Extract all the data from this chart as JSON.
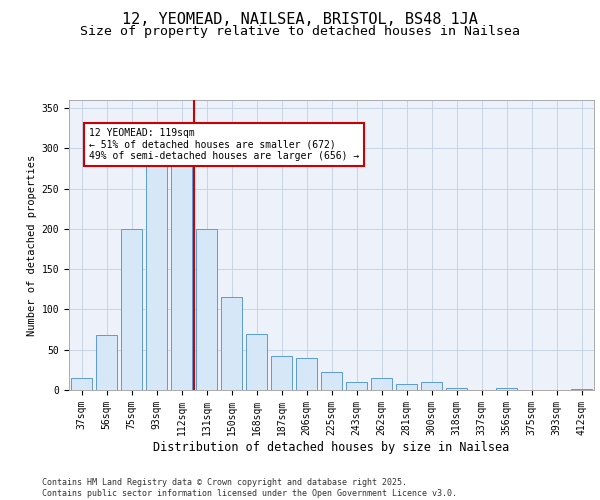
{
  "title1": "12, YEOMEAD, NAILSEA, BRISTOL, BS48 1JA",
  "title2": "Size of property relative to detached houses in Nailsea",
  "xlabel": "Distribution of detached houses by size in Nailsea",
  "ylabel": "Number of detached properties",
  "categories": [
    "37sqm",
    "56sqm",
    "75sqm",
    "93sqm",
    "112sqm",
    "131sqm",
    "150sqm",
    "168sqm",
    "187sqm",
    "206sqm",
    "225sqm",
    "243sqm",
    "262sqm",
    "281sqm",
    "300sqm",
    "318sqm",
    "337sqm",
    "356sqm",
    "375sqm",
    "393sqm",
    "412sqm"
  ],
  "values": [
    15,
    68,
    200,
    285,
    280,
    200,
    115,
    70,
    42,
    40,
    22,
    10,
    15,
    8,
    10,
    3,
    0,
    2,
    0,
    0,
    1
  ],
  "bar_color": "#d6e8f7",
  "bar_edge_color": "#5b9bd5",
  "vline_color": "#cc0000",
  "annotation_text": "12 YEOMEAD: 119sqm\n← 51% of detached houses are smaller (672)\n49% of semi-detached houses are larger (656) →",
  "annotation_box_color": "#ffffff",
  "annotation_box_edge": "#cc0000",
  "background_color": "#edf2fa",
  "ylim": [
    0,
    360
  ],
  "yticks": [
    0,
    50,
    100,
    150,
    200,
    250,
    300,
    350
  ],
  "footer": "Contains HM Land Registry data © Crown copyright and database right 2025.\nContains public sector information licensed under the Open Government Licence v3.0.",
  "title1_fontsize": 11,
  "title2_fontsize": 9.5,
  "xlabel_fontsize": 8.5,
  "ylabel_fontsize": 7.5,
  "tick_fontsize": 7,
  "footer_fontsize": 6,
  "annotation_fontsize": 7
}
